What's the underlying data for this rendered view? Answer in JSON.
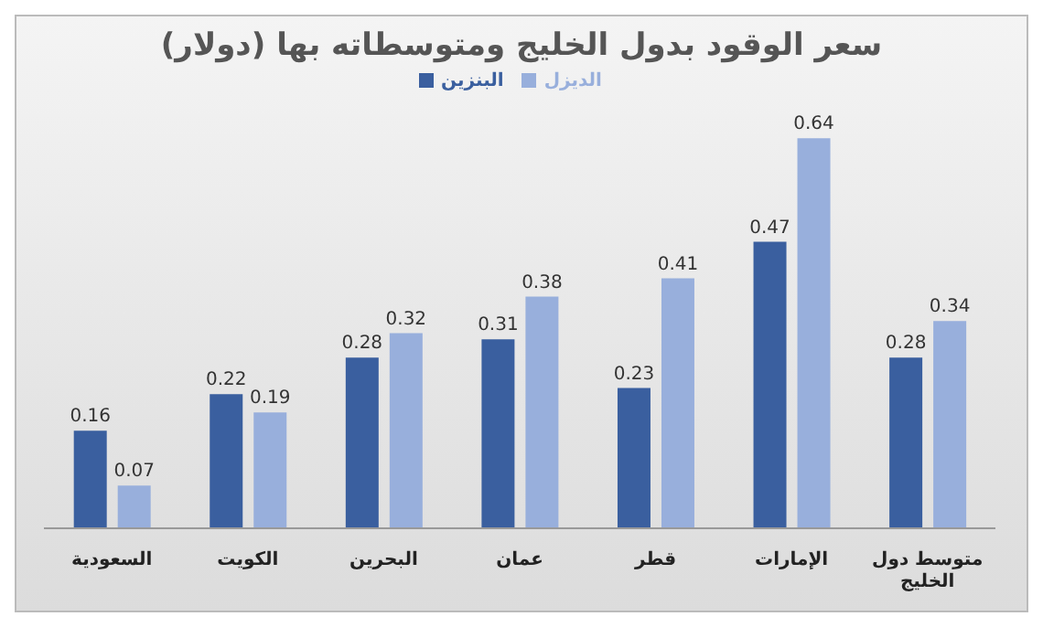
{
  "chart_data": {
    "type": "bar",
    "title": "سعر الوقود بدول الخليج ومتوسطاته بها (دولار)",
    "categories": [
      "السعودية",
      "الكويت",
      "البحرين",
      "عمان",
      "قطر",
      "الإمارات",
      "متوسط دول الخليج"
    ],
    "series": [
      {
        "name": "البنزين",
        "color": "#3a5f9f",
        "values": [
          0.16,
          0.22,
          0.28,
          0.31,
          0.23,
          0.47,
          0.28
        ]
      },
      {
        "name": "الديزل",
        "color": "#98afdc",
        "values": [
          0.07,
          0.19,
          0.32,
          0.38,
          0.41,
          0.64,
          0.34
        ]
      }
    ],
    "data_labels": true,
    "legend": "top",
    "grid": false
  }
}
